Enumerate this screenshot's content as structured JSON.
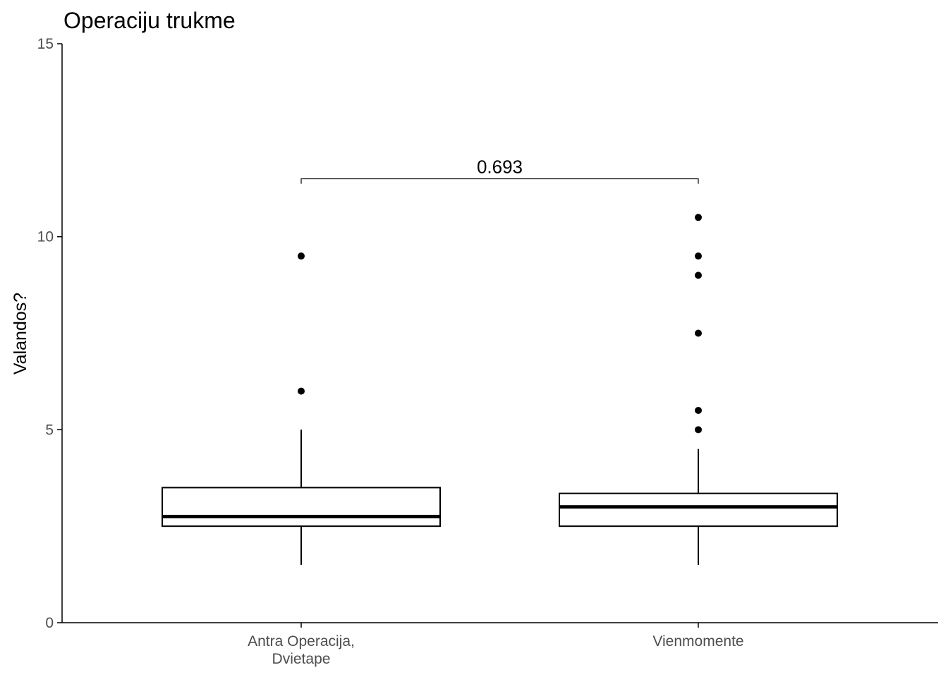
{
  "chart_data": {
    "type": "boxplot",
    "title": "Operaciju trukme",
    "xlabel": "",
    "ylabel": "Valandos?",
    "ylim": [
      0,
      15
    ],
    "yticks": [
      0,
      5,
      10,
      15
    ],
    "grid": false,
    "legend": "none",
    "categories": [
      [
        "Antra Operacija,",
        "Dvietape"
      ],
      [
        "Vienmomente"
      ]
    ],
    "boxes": [
      {
        "lower_whisker": 1.5,
        "q1": 2.5,
        "median": 2.75,
        "q3": 3.5,
        "upper_whisker": 5.0,
        "outliers": [
          6.0,
          9.5
        ]
      },
      {
        "lower_whisker": 1.5,
        "q1": 2.5,
        "median": 3.0,
        "q3": 3.35,
        "upper_whisker": 4.5,
        "outliers": [
          5.0,
          5.5,
          7.5,
          9.0,
          9.5,
          10.5
        ]
      }
    ],
    "comparison": {
      "label": "0.693",
      "y": 11.5,
      "from": 0,
      "to": 1
    }
  }
}
